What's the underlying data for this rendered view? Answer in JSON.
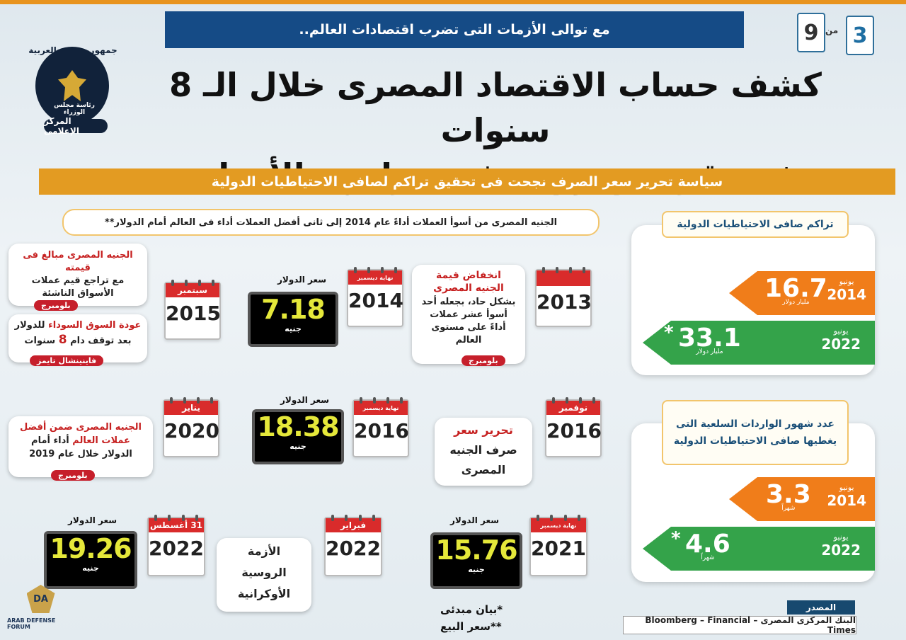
{
  "header": {
    "ribbon": "مع توالى الأزمات التى تضرب اقتصادات العالم..",
    "page_current": "3",
    "page_of_label": "من",
    "page_total": "9",
    "logo_top": "جمهورية مصر العربية",
    "logo_side": "رئاسة مجلس الوزراء",
    "logo_band": "المركز الإعلامى",
    "headline_1": "كشف حساب الاقتصاد المصرى خلال الـ 8 سنوات",
    "headline_2": "يثبت قوته ومرونته فى مواجهة الأزمات",
    "subheadline": "سياسة تحرير سعر الصرف نجحت فى تحقيق تراكم لصافى الاحتياطيات الدولية"
  },
  "timeline": {
    "title": "الجنيه المصرى من أسوأ العملات أداءً عام 2014 إلى ثانى أفضل العملات أداء فى العالم أمام الدولار**",
    "usd_rate_label": "سعر الدولار",
    "currency_unit": "جنيه",
    "end_december": "نهاية ديسمبر",
    "row1": {
      "cal_2013_year": "2013",
      "bubble_2013_head": "انخفاض قيمة الجنيه المصرى",
      "bubble_2013_body": "بشكل حاد، بجعله أحد أسوأ عشر عملات أداءً على مستوى العالم",
      "bubble_2013_source": "بلومبرج",
      "cal_2014_year": "2014",
      "rate_2014": "7.18",
      "cal_2015_month": "سبتمبر",
      "cal_2015_year": "2015",
      "bubble_a_head": "الجنيه المصرى مبالغ فى قيمته",
      "bubble_a_body": "مع تراجع قيم عملات الأسواق الناشئة",
      "bubble_a_source": "بلومبرج",
      "bubble_b_head": "عودة السوق السوداء",
      "bubble_b_body1": "للدولار",
      "bubble_b_body2": "بعد توقف دام",
      "bubble_b_num": "8",
      "bubble_b_body3": "سنوات",
      "bubble_b_source": "فاينينشال تايمز"
    },
    "row2": {
      "cal_nov_month": "نوفمبر",
      "cal_nov_year": "2016",
      "bubble_float_1": "تحرير سعر",
      "bubble_float_2": "صرف الجنيه",
      "bubble_float_3": "المصرى",
      "cal_dec2016_year": "2016",
      "rate_2016": "18.38",
      "cal_2020_month": "يناير",
      "cal_2020_year": "2020",
      "bubble_2020_head": "الجنيه المصرى ضمن أفضل",
      "bubble_2020_red": "عملات العالم",
      "bubble_2020_body": "أداء أمام الدولار خلال عام 2019",
      "bubble_2020_source": "بلومبرج"
    },
    "row3": {
      "cal_2021_year": "2021",
      "rate_2021": "15.76",
      "cal_feb_month": "فبراير",
      "cal_feb_year": "2022",
      "bubble_crisis_1": "الأزمة",
      "bubble_crisis_2": "الروسية",
      "bubble_crisis_3": "الأوكرانية",
      "cal_aug_month": "31 أغسطس",
      "cal_aug_year": "2022",
      "rate_2022": "19.26"
    },
    "footnote_1": "*بيان مبدئى",
    "footnote_2": "**سعر البيع"
  },
  "reserves_panel": {
    "title": "تراكم صافى الاحتياطيات الدولية",
    "items": [
      {
        "value": "16.7",
        "unit": "مليار دولار",
        "month": "يونيو",
        "year": "2014",
        "color": "#f07d1a",
        "star": ""
      },
      {
        "value": "33.1",
        "unit": "مليار دولار",
        "month": "يونيو",
        "year": "2022",
        "color": "#34a34a",
        "star": "*"
      }
    ]
  },
  "imports_panel": {
    "title": "عدد شهور الواردات السلعية التى يغطيها صافى الاحتياطيات الدولية",
    "items": [
      {
        "value": "3.3",
        "unit": "شهراً",
        "month": "يونيو",
        "year": "2014",
        "color": "#f07d1a",
        "star": ""
      },
      {
        "value": "4.6",
        "unit": "شهراً",
        "month": "يونيو",
        "year": "2022",
        "color": "#34a34a",
        "star": "*"
      }
    ]
  },
  "source": {
    "label": "المصدر",
    "text": "البنك المركزى المصرى – Bloomberg – Financial Times"
  },
  "watermark": {
    "initials": "DA",
    "text": "ARAB DEFENSE FORUM"
  }
}
